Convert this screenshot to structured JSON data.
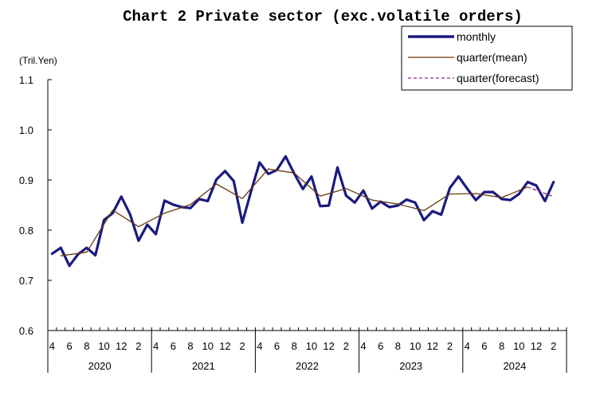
{
  "chart_data": {
    "type": "line",
    "title": "Chart 2 Private sector (exc.volatile orders)",
    "unit_label": "(Tril.Yen)",
    "ylim": [
      0.6,
      1.1
    ],
    "yticks": [
      "0.6",
      "0.7",
      "0.8",
      "0.9",
      "1.0",
      "1.1"
    ],
    "month_ticks": [
      "4",
      "6",
      "8",
      "10",
      "12",
      "2",
      "4",
      "6",
      "8",
      "10",
      "12",
      "2",
      "4",
      "6",
      "8",
      "10",
      "12",
      "2",
      "4",
      "6",
      "8",
      "10",
      "12",
      "2",
      "4",
      "6",
      "8",
      "10",
      "12",
      "2"
    ],
    "years": [
      "2020",
      "2021",
      "2022",
      "2023",
      "2024"
    ],
    "legend_position": "top-right",
    "series": [
      {
        "name": "monthly",
        "color": "#1a1a80",
        "style": "solid-thick",
        "x": [
          "2020-04",
          "2020-05",
          "2020-06",
          "2020-07",
          "2020-08",
          "2020-09",
          "2020-10",
          "2020-11",
          "2020-12",
          "2021-01",
          "2021-02",
          "2021-03",
          "2021-04",
          "2021-05",
          "2021-06",
          "2021-07",
          "2021-08",
          "2021-09",
          "2021-10",
          "2021-11",
          "2021-12",
          "2022-01",
          "2022-02",
          "2022-03",
          "2022-04",
          "2022-05",
          "2022-06",
          "2022-07",
          "2022-08",
          "2022-09",
          "2022-10",
          "2022-11",
          "2022-12",
          "2023-01",
          "2023-02",
          "2023-03",
          "2023-04",
          "2023-05",
          "2023-06",
          "2023-07",
          "2023-08",
          "2023-09",
          "2023-10",
          "2023-11",
          "2023-12",
          "2024-01",
          "2024-02",
          "2024-03",
          "2024-04",
          "2024-05",
          "2024-06",
          "2024-07",
          "2024-08",
          "2024-09",
          "2024-10",
          "2024-11",
          "2024-12",
          "2025-01",
          "2025-02",
          "2025-03"
        ],
        "values": [
          0.753,
          0.765,
          0.729,
          0.752,
          0.765,
          0.75,
          0.82,
          0.834,
          0.867,
          0.832,
          0.779,
          0.811,
          0.792,
          0.859,
          0.851,
          0.846,
          0.844,
          0.862,
          0.858,
          0.901,
          0.918,
          0.898,
          0.815,
          0.877,
          0.935,
          0.912,
          0.92,
          0.947,
          0.913,
          0.882,
          0.907,
          0.848,
          0.849,
          0.925,
          0.869,
          0.855,
          0.879,
          0.843,
          0.857,
          0.846,
          0.849,
          0.861,
          0.855,
          0.82,
          0.838,
          0.831,
          0.884,
          0.907,
          0.883,
          0.86,
          0.876,
          0.876,
          0.862,
          0.86,
          0.872,
          0.896,
          0.889,
          0.858,
          0.896,
          null
        ]
      },
      {
        "name": "quarter(mean)",
        "color": "#6b3a10",
        "style": "solid-thin",
        "x": [
          "2020-05",
          "2020-08",
          "2020-11",
          "2021-02",
          "2021-05",
          "2021-08",
          "2021-11",
          "2022-02",
          "2022-05",
          "2022-08",
          "2022-11",
          "2023-02",
          "2023-05",
          "2023-08",
          "2023-11",
          "2024-02",
          "2024-05",
          "2024-08",
          "2024-11"
        ],
        "values": [
          0.749,
          0.756,
          0.84,
          0.807,
          0.834,
          0.851,
          0.892,
          0.863,
          0.922,
          0.914,
          0.868,
          0.883,
          0.86,
          0.852,
          0.839,
          0.872,
          0.873,
          0.865,
          0.886
        ]
      },
      {
        "name": "quarter(forecast)",
        "color": "#8b2a8b",
        "style": "dashed",
        "x": [
          "2024-11",
          "2025-02"
        ],
        "values": [
          0.886,
          0.867
        ]
      }
    ]
  }
}
